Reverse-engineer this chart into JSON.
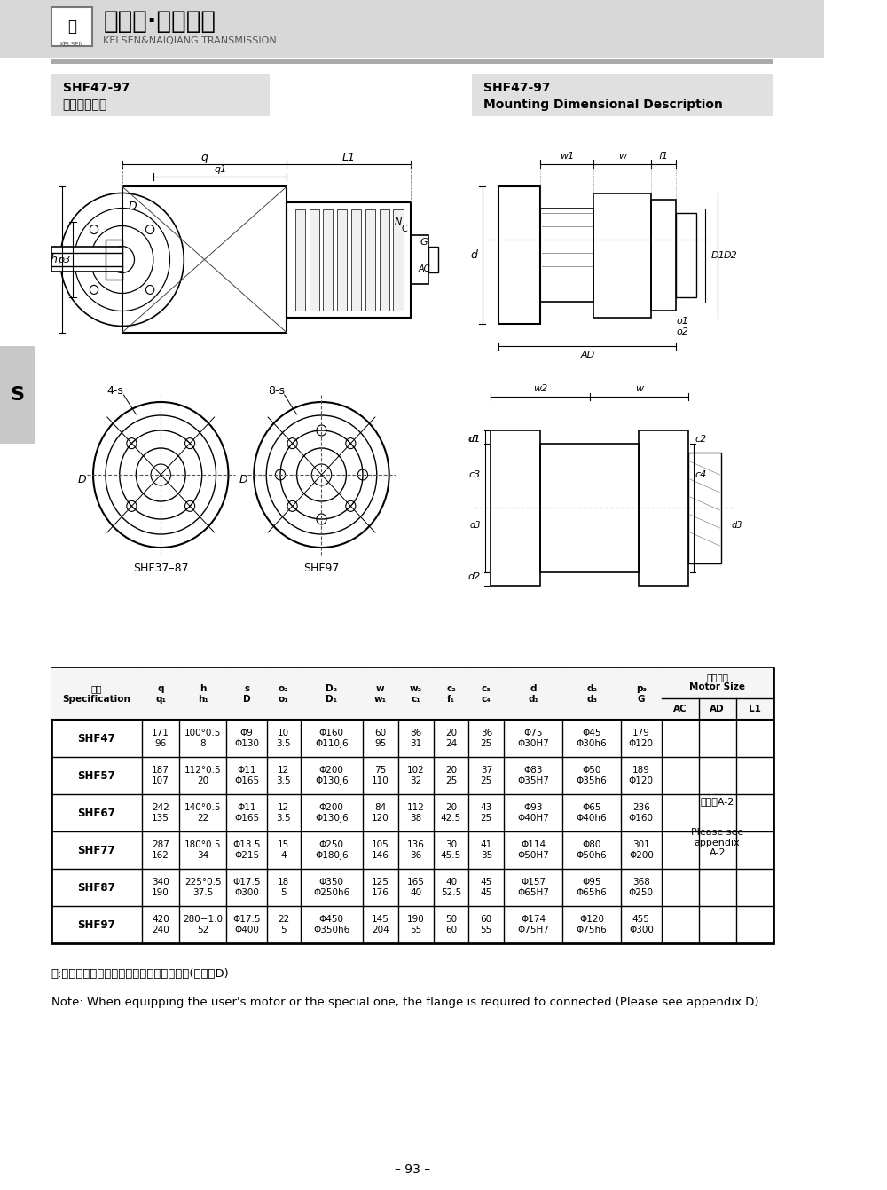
{
  "company_name": "凯尔森·耐强传动",
  "company_sub": "KELSEN&NAIQIANG TRANSMISSION",
  "title_left_1": "SHF47-97",
  "title_left_2": "安装结构尺寸",
  "title_right_1": "SHF47-97",
  "title_right_2": "Mounting Dimensional Description",
  "table_data": [
    [
      "SHF47",
      "171\n96",
      "100°0.5\n8",
      "Φ9\nΦ130",
      "10\n3.5",
      "Φ160\nΦ110j6",
      "60\n95",
      "86\n31",
      "20\n24",
      "36\n25",
      "Φ75\nΦ30H7",
      "Φ45\nΦ30h6",
      "179\nΦ120"
    ],
    [
      "SHF57",
      "187\n107",
      "112°0.5\n20",
      "Φ11\nΦ165",
      "12\n3.5",
      "Φ200\nΦ130j6",
      "75\n110",
      "102\n32",
      "20\n25",
      "37\n25",
      "Φ83\nΦ35H7",
      "Φ50\nΦ35h6",
      "189\nΦ120"
    ],
    [
      "SHF67",
      "242\n135",
      "140°0.5\n22",
      "Φ11\nΦ165",
      "12\n3.5",
      "Φ200\nΦ130j6",
      "84\n120",
      "112\n38",
      "20\n42.5",
      "43\n25",
      "Φ93\nΦ40H7",
      "Φ65\nΦ40h6",
      "236\nΦ160"
    ],
    [
      "SHF77",
      "287\n162",
      "180°0.5\n34",
      "Φ13.5\nΦ215",
      "15\n4",
      "Φ250\nΦ180j6",
      "105\n146",
      "136\n36",
      "30\n45.5",
      "41\n35",
      "Φ114\nΦ50H7",
      "Φ80\nΦ50h6",
      "301\nΦ200"
    ],
    [
      "SHF87",
      "340\n190",
      "225°0.5\n37.5",
      "Φ17.5\nΦ300",
      "18\n5",
      "Φ350\nΦ250h6",
      "125\n176",
      "165\n40",
      "40\n52.5",
      "45\n45",
      "Φ157\nΦ65H7",
      "Φ95\nΦ65h6",
      "368\nΦ250"
    ],
    [
      "SHF97",
      "420\n240",
      "280−1.0\n52",
      "Φ17.5\nΦ400",
      "22\n5",
      "Φ450\nΦ350h6",
      "145\n204",
      "190\n55",
      "50\n60",
      "60\n55",
      "Φ174\nΦ75H7",
      "Φ120\nΦ75h6",
      "455\nΦ300"
    ]
  ],
  "note_cn": "注:电机需方配或配特殊电机时需加联接法兰(见附录D)",
  "note_en": "Note: When equipping the user's motor or the special one, the flange is required to connected.(Please see appendix D)",
  "page_num": "– 93 –",
  "motor_size_cn": "电机尺寸",
  "motor_size_en": "Motor Size",
  "motor_note_cn": "见附录A-2",
  "motor_note_en": "Please see\nappendix\nA-2",
  "side_tab": "S",
  "bg_color": "#ffffff",
  "header_bg": "#d8d8d8",
  "title_box_bg": "#e0e0e0",
  "table_header_bg": "#f5f5f5"
}
